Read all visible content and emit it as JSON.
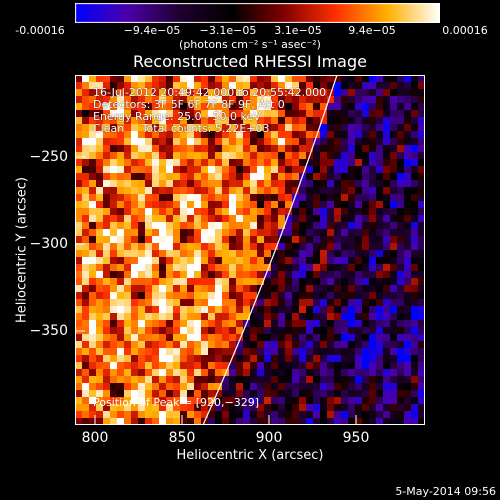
{
  "colorbar": {
    "ticks": [
      "-0.00016",
      "−9.4e−05",
      "−3.1e−05",
      "3.1e−05",
      "9.4e−05",
      "0.00016"
    ],
    "unit": "(photons cm⁻² s⁻¹ asec⁻²)",
    "colormap": [
      "#0000ff",
      "#4a00aa",
      "#200030",
      "#000000",
      "#800000",
      "#ff3000",
      "#ffb000",
      "#ffffff"
    ]
  },
  "title": "Reconstructed RHESSI Image",
  "annotation": {
    "line1": "16-Jul-2012 20:49:42.000 to 20:55:42.000",
    "line2": "Detectors: 3F 5F 6F 7F 8F 9F, Att 0",
    "line3": "Energy Range: 25.0 - 50.0 keV",
    "line4": "Clean     Total counts: 5.22E+03"
  },
  "peak_text": "Position of Peak = [920,−329]",
  "axes": {
    "xlabel": "Heliocentric X (arcsec)",
    "ylabel": "Heliocentric Y (arcsec)",
    "xticks": [
      "800",
      "850",
      "900",
      "950"
    ],
    "yticks": [
      "−250",
      "−300",
      "−350"
    ]
  },
  "datestamp": "5-May-2014 09:56"
}
